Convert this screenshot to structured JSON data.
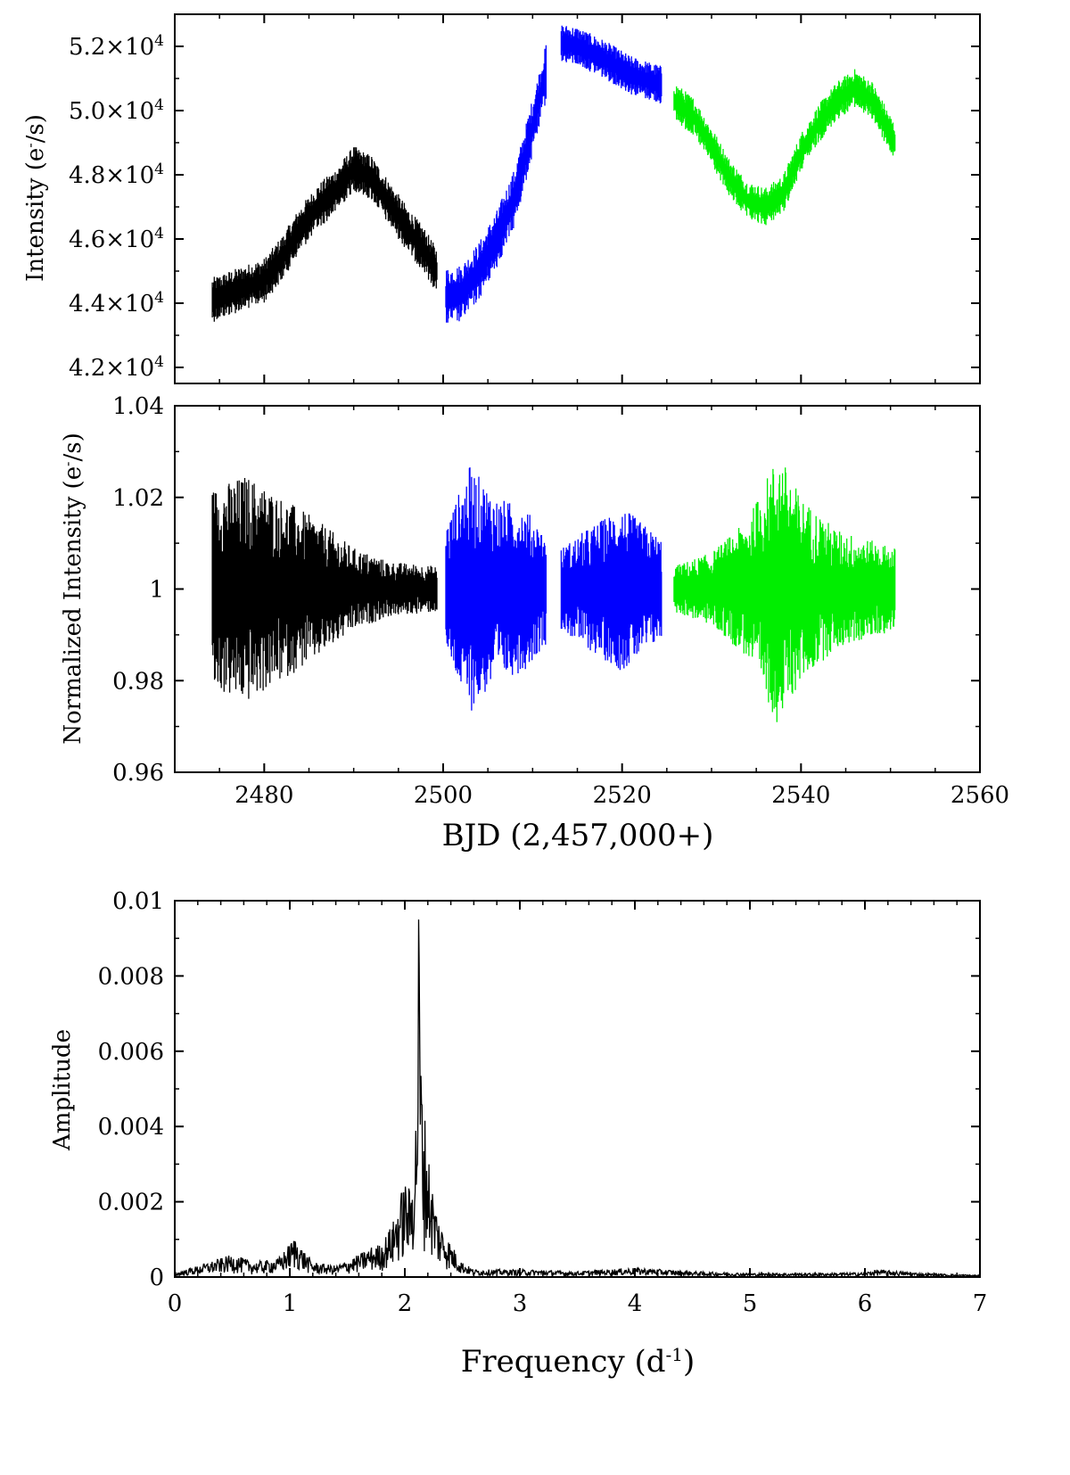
{
  "colors": {
    "sector1": "#000000",
    "sector2": "#0000ff",
    "sector3": "#00ee00",
    "axis": "#000000",
    "background": "#ffffff"
  },
  "chart_data": [
    {
      "id": "raw",
      "type": "line",
      "title": "",
      "ylabel_main": "Intensity (e",
      "ylabel_sup": "-",
      "ylabel_end": "/s)",
      "xlabel": "",
      "xlim": [
        2470,
        2560
      ],
      "ylim": [
        41500,
        53000
      ],
      "yticks": [
        {
          "value": 42000,
          "mant": "4.2×10",
          "exp": "4"
        },
        {
          "value": 44000,
          "mant": "4.4×10",
          "exp": "4"
        },
        {
          "value": 46000,
          "mant": "4.6×10",
          "exp": "4"
        },
        {
          "value": 48000,
          "mant": "4.8×10",
          "exp": "4"
        },
        {
          "value": 50000,
          "mant": "5.0×10",
          "exp": "4"
        },
        {
          "value": 52000,
          "mant": "5.2×10",
          "exp": "4"
        }
      ],
      "series": [
        {
          "color_key": "sector1",
          "x": [
            2474.2,
            2476,
            2478,
            2480,
            2482,
            2484,
            2486,
            2488,
            2490,
            2492,
            2494,
            2496,
            2498,
            2499.3
          ],
          "y": [
            44100,
            44300,
            44500,
            44700,
            45400,
            46300,
            47000,
            47500,
            48200,
            47900,
            47100,
            46300,
            45600,
            45000
          ],
          "scatter": 700
        },
        {
          "color_key": "sector2",
          "x": [
            2500.3,
            2502,
            2504,
            2506,
            2508,
            2510,
            2511.5
          ],
          "y": [
            44200,
            44300,
            45000,
            46000,
            47300,
            49500,
            51200
          ],
          "scatter": 900
        },
        {
          "color_key": "sector2",
          "x": [
            2513.2,
            2515,
            2518,
            2521,
            2524.4
          ],
          "y": [
            52100,
            52000,
            51600,
            51100,
            50800
          ],
          "scatter": 600
        },
        {
          "color_key": "sector3",
          "x": [
            2525.8,
            2528,
            2530,
            2532,
            2534,
            2536,
            2538,
            2540,
            2542,
            2544,
            2546,
            2548,
            2550.5
          ],
          "y": [
            50300,
            49800,
            48900,
            47900,
            47200,
            47000,
            47400,
            48700,
            49600,
            50300,
            50700,
            50300,
            49000
          ],
          "scatter": 600
        }
      ]
    },
    {
      "id": "normalized",
      "type": "line",
      "title": "",
      "ylabel_main": "Normalized Intensity (e",
      "ylabel_sup": "-",
      "ylabel_end": "/s)",
      "xlabel": "BJD (2,457,000+)",
      "xlim": [
        2470,
        2560
      ],
      "ylim": [
        0.96,
        1.04
      ],
      "xticks": [
        "2480",
        "2500",
        "2520",
        "2540",
        "2560"
      ],
      "yticks": [
        "0.96",
        "0.98",
        "1",
        "1.02",
        "1.04"
      ],
      "series": [
        {
          "color_key": "sector1",
          "x": [
            2474.2,
            2478,
            2482,
            2486,
            2490,
            2494,
            2499.3
          ],
          "y": [
            1.0,
            1.0,
            1.0,
            1.0,
            1.0,
            1.0,
            1.0
          ],
          "amplitude": [
            0.022,
            0.025,
            0.02,
            0.015,
            0.009,
            0.006,
            0.005
          ]
        },
        {
          "color_key": "sector2",
          "x": [
            2500.3,
            2503,
            2506,
            2509,
            2511.5
          ],
          "y": [
            1.0,
            1.0,
            1.0,
            1.0,
            1.0
          ],
          "amplitude": [
            0.014,
            0.027,
            0.02,
            0.018,
            0.012
          ]
        },
        {
          "color_key": "sector2",
          "x": [
            2513.2,
            2516,
            2520,
            2524.4
          ],
          "y": [
            1.0,
            1.0,
            1.0,
            1.0
          ],
          "amplitude": [
            0.009,
            0.013,
            0.018,
            0.011
          ]
        },
        {
          "color_key": "sector3",
          "x": [
            2525.8,
            2530,
            2534,
            2537.5,
            2540,
            2544,
            2550.5
          ],
          "y": [
            1.0,
            1.0,
            1.0,
            1.0,
            1.0,
            1.0,
            1.0
          ],
          "amplitude": [
            0.005,
            0.008,
            0.015,
            0.03,
            0.02,
            0.013,
            0.009
          ]
        }
      ]
    },
    {
      "id": "periodogram",
      "type": "line",
      "title": "",
      "ylabel": "Amplitude",
      "xlabel_main": "Frequency (d",
      "xlabel_sup": "-1",
      "xlabel_end": ")",
      "xlim": [
        0,
        7
      ],
      "ylim": [
        0,
        0.01
      ],
      "xticks": [
        "0",
        "1",
        "2",
        "3",
        "4",
        "5",
        "6",
        "7"
      ],
      "yticks": [
        "0",
        "0.002",
        "0.004",
        "0.006",
        "0.008",
        "0.01"
      ],
      "series": [
        {
          "color_key": "sector1",
          "x": [
            0.0,
            0.2,
            0.4,
            0.5,
            0.7,
            0.9,
            1.0,
            1.05,
            1.1,
            1.2,
            1.4,
            1.6,
            1.7,
            1.8,
            1.9,
            1.95,
            2.0,
            2.05,
            2.1,
            2.12,
            2.15,
            2.2,
            2.25,
            2.3,
            2.4,
            2.5,
            2.6,
            3.0,
            3.5,
            4.0,
            4.5,
            5.0,
            5.5,
            6.0,
            6.1,
            6.5,
            7.0
          ],
          "y": [
            0.0001,
            0.0003,
            0.0005,
            0.0006,
            0.0004,
            0.0005,
            0.0009,
            0.0011,
            0.0008,
            0.0004,
            0.0003,
            0.0006,
            0.0008,
            0.0009,
            0.0015,
            0.0021,
            0.0026,
            0.0023,
            0.0046,
            0.0095,
            0.0051,
            0.0035,
            0.0022,
            0.0015,
            0.0009,
            0.0004,
            0.0002,
            0.0002,
            0.00015,
            0.00025,
            0.00015,
            0.0001,
            0.0001,
            0.00012,
            0.0002,
            0.0001,
            5e-05
          ]
        }
      ]
    }
  ]
}
